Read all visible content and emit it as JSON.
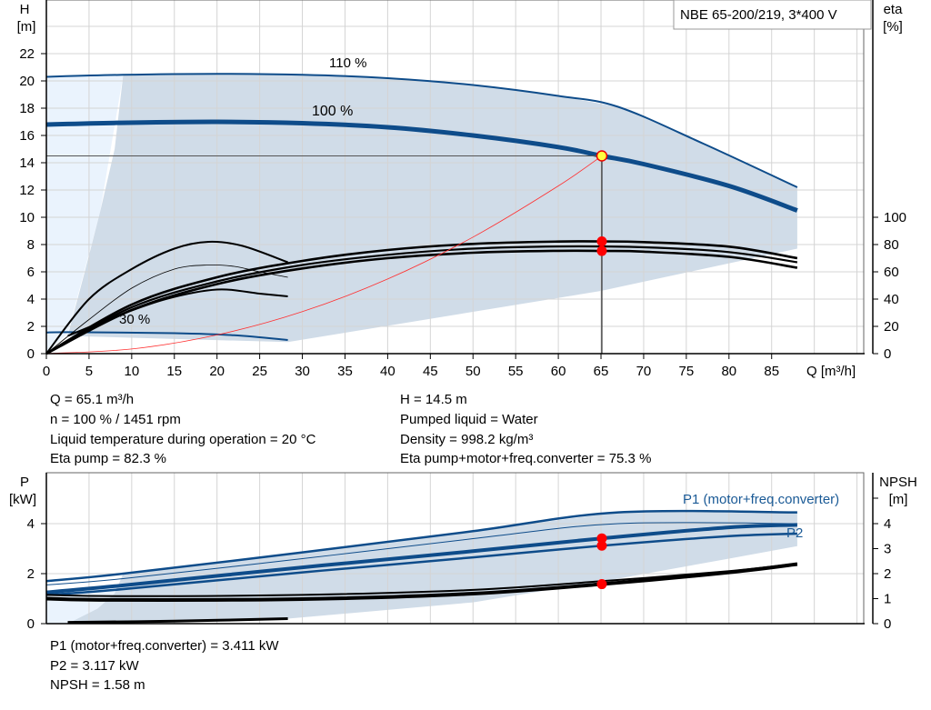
{
  "legend_box": "NBE 65-200/219, 3*400 V",
  "colors": {
    "curve": "#0e4c8a",
    "shade": "#d0dce8",
    "shade_light": "#eaf3fd",
    "system": "#ff3030",
    "marker": "#ff0000",
    "grid": "#d4d4d4"
  },
  "chart_data": [
    {
      "type": "line",
      "title": "",
      "xlabel": "Q [m³/h]",
      "ylabel": [
        "H",
        "[m]"
      ],
      "y2label": [
        "eta",
        "[%]"
      ],
      "xlim": [
        0,
        95.8
      ],
      "ylim": [
        0,
        25.9
      ],
      "y2lim": [
        0,
        259
      ],
      "xticks": [
        0,
        5,
        10,
        15,
        20,
        25,
        30,
        35,
        40,
        45,
        50,
        55,
        60,
        65,
        70,
        75,
        80,
        85
      ],
      "yticks": [
        0,
        2,
        4,
        6,
        8,
        10,
        12,
        14,
        16,
        18,
        20,
        22
      ],
      "y2ticks": [
        0,
        20,
        40,
        60,
        80,
        100
      ],
      "grid": true,
      "annotations": {
        "speed_max": "110 %",
        "speed_nom": "100 %",
        "speed_min": "30 %"
      },
      "series": [
        {
          "name": "110 %",
          "axis": "H",
          "points": [
            [
              0,
              20.3
            ],
            [
              9,
              20.45
            ],
            [
              20,
              20.52
            ],
            [
              30,
              20.45
            ],
            [
              40,
              20.2
            ],
            [
              50,
              19.7
            ],
            [
              60,
              18.9
            ],
            [
              67,
              18.1
            ],
            [
              77,
              15.4
            ],
            [
              88,
              12.2
            ]
          ]
        },
        {
          "name": "100 %",
          "axis": "H",
          "points": [
            [
              0,
              16.8
            ],
            [
              8,
              16.92
            ],
            [
              20,
              17.0
            ],
            [
              30,
              16.9
            ],
            [
              40,
              16.6
            ],
            [
              50,
              16.0
            ],
            [
              60,
              15.15
            ],
            [
              65.1,
              14.5
            ],
            [
              70,
              13.9
            ],
            [
              80,
              12.3
            ],
            [
              88,
              10.5
            ]
          ]
        },
        {
          "name": "30 %",
          "axis": "H",
          "points": [
            [
              0,
              1.55
            ],
            [
              3,
              1.57
            ],
            [
              15,
              1.5
            ],
            [
              22,
              1.35
            ],
            [
              28.3,
              1.0
            ]
          ]
        },
        {
          "axis": "eta",
          "points": [
            [
              0,
              0
            ],
            [
              10,
              36
            ],
            [
              20,
              56
            ],
            [
              30,
              68
            ],
            [
              40,
              76
            ],
            [
              50,
              80.5
            ],
            [
              60,
              82.2
            ],
            [
              65.1,
              82.3
            ],
            [
              70,
              81.8
            ],
            [
              80,
              78.5
            ],
            [
              88,
              70
            ]
          ]
        },
        {
          "axis": "eta",
          "points": [
            [
              0,
              0
            ],
            [
              10,
              34
            ],
            [
              20,
              53
            ],
            [
              30,
              65
            ],
            [
              40,
              72.5
            ],
            [
              50,
              77
            ],
            [
              60,
              78.6
            ],
            [
              70,
              78
            ],
            [
              80,
              74.5
            ],
            [
              88,
              67
            ]
          ]
        },
        {
          "axis": "eta",
          "points": [
            [
              0,
              0
            ],
            [
              10,
              32
            ],
            [
              20,
              51
            ],
            [
              30,
              62.5
            ],
            [
              40,
              70
            ],
            [
              50,
              74
            ],
            [
              60,
              75.4
            ],
            [
              65.1,
              75.3
            ],
            [
              70,
              74.8
            ],
            [
              80,
              71
            ],
            [
              88,
              63
            ]
          ]
        },
        {
          "axis": "eta",
          "points": [
            [
              0,
              0
            ],
            [
              5,
              25
            ],
            [
              10,
              48
            ],
            [
              15,
              62
            ],
            [
              19,
              65
            ],
            [
              22,
              64
            ],
            [
              25,
              60
            ],
            [
              28.3,
              56
            ]
          ]
        },
        {
          "axis": "eta",
          "points": [
            [
              2.5,
              13
            ],
            [
              8,
              27
            ],
            [
              14,
              40
            ],
            [
              20,
              47
            ],
            [
              25,
              44
            ],
            [
              28.3,
              42
            ]
          ]
        },
        {
          "axis": "eta",
          "points": [
            [
              0,
              0
            ],
            [
              5,
              40
            ],
            [
              10,
              62
            ],
            [
              15,
              77
            ],
            [
              19,
              82
            ],
            [
              23,
              79
            ],
            [
              28.3,
              67
            ]
          ]
        }
      ],
      "system_curve": {
        "points": [
          [
            0,
            0
          ],
          [
            10,
            0.34
          ],
          [
            20,
            1.37
          ],
          [
            30,
            3.08
          ],
          [
            40,
            5.47
          ],
          [
            50,
            8.55
          ],
          [
            60,
            12.3
          ],
          [
            65.1,
            14.5
          ]
        ]
      },
      "operating_point": {
        "Q": 65.1,
        "H": 14.5,
        "eta_pump": 82.3,
        "eta_total": 75.3
      }
    },
    {
      "type": "line",
      "title": "",
      "ylabel": [
        "P",
        "[kW]"
      ],
      "y2label": [
        "NPSH",
        "[m]"
      ],
      "xlim": [
        0,
        95.8
      ],
      "ylim": [
        0,
        6
      ],
      "y2lim": [
        0,
        6
      ],
      "yticks": [
        0,
        2,
        4
      ],
      "y2ticks": [
        0,
        1,
        2,
        3,
        4
      ],
      "grid": true,
      "series": [
        {
          "name": "P1 (motor+freq.converter)",
          "axis": "P",
          "points": [
            [
              0,
              1.7
            ],
            [
              9,
              2.0
            ],
            [
              30,
              2.85
            ],
            [
              50,
              3.7
            ],
            [
              67,
              4.45
            ],
            [
              88,
              4.45
            ]
          ]
        },
        {
          "axis": "P",
          "points": [
            [
              0,
              1.55
            ],
            [
              9,
              1.8
            ],
            [
              30,
              2.6
            ],
            [
              50,
              3.4
            ],
            [
              67,
              4.0
            ],
            [
              88,
              4.0
            ]
          ]
        },
        {
          "axis": "P",
          "points": [
            [
              0,
              1.25
            ],
            [
              8,
              1.5
            ],
            [
              30,
              2.25
            ],
            [
              50,
              2.9
            ],
            [
              65.1,
              3.41
            ],
            [
              80,
              3.85
            ],
            [
              88,
              3.95
            ]
          ]
        },
        {
          "name": "P2",
          "axis": "P",
          "points": [
            [
              0,
              1.15
            ],
            [
              8,
              1.35
            ],
            [
              30,
              2.05
            ],
            [
              50,
              2.65
            ],
            [
              65.1,
              3.117
            ],
            [
              80,
              3.5
            ],
            [
              88,
              3.6
            ]
          ]
        },
        {
          "axis": "NPSH",
          "points": [
            [
              0,
              1.15
            ],
            [
              9,
              1.1
            ],
            [
              30,
              1.15
            ],
            [
              50,
              1.35
            ],
            [
              65.1,
              1.7
            ],
            [
              80,
              2.1
            ],
            [
              88,
              2.4
            ]
          ]
        },
        {
          "name": "NPSH",
          "axis": "NPSH",
          "points": [
            [
              0,
              1.0
            ],
            [
              8,
              0.95
            ],
            [
              30,
              0.98
            ],
            [
              50,
              1.2
            ],
            [
              65.1,
              1.58
            ],
            [
              80,
              2.05
            ],
            [
              88,
              2.38
            ]
          ]
        },
        {
          "axis": "P",
          "points": [
            [
              2.5,
              0.05
            ],
            [
              15,
              0.1
            ],
            [
              28.3,
              0.2
            ]
          ]
        }
      ],
      "operating_point": {
        "P1": 3.411,
        "P2": 3.117,
        "NPSH": 1.58
      }
    }
  ],
  "info_top": {
    "q": "Q = 65.1 m³/h",
    "n": "n = 100 % / 1451 rpm",
    "temp": "Liquid temperature during operation = 20 °C",
    "eta_pump": "Eta pump = 82.3 %",
    "h": "H = 14.5 m",
    "liquid": "Pumped liquid = Water",
    "density": "Density = 998.2 kg/m³",
    "eta_total": "Eta pump+motor+freq.converter = 75.3 %"
  },
  "info_bottom": {
    "p1": "P1 (motor+freq.converter) = 3.411 kW",
    "p2": "P2 = 3.117 kW",
    "npsh": "NPSH = 1.58 m"
  }
}
